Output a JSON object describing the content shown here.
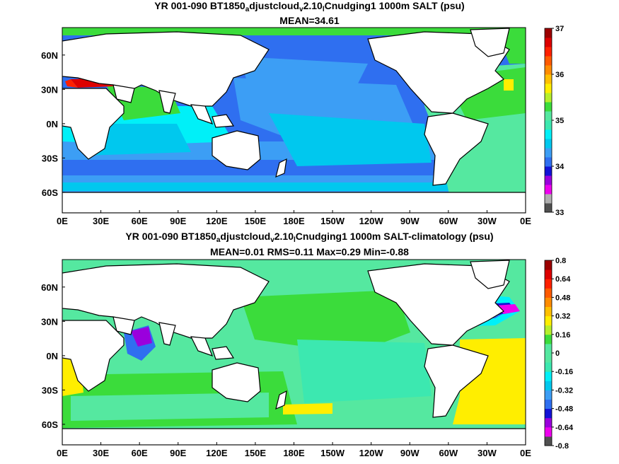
{
  "chart_data": [
    {
      "type": "heatmap",
      "title": {
        "pre": "YR 001-090 BT1850",
        "s1": "a",
        "mid1": "djustcloud",
        "s2": "v",
        "mid2": "2.10",
        "s3": "l",
        "post": "Cnudging1 1000m SALT (psu)"
      },
      "subtitle": "MEAN=34.61",
      "x_ticks": [
        "0E",
        "30E",
        "60E",
        "90E",
        "120E",
        "150E",
        "180E",
        "150W",
        "120W",
        "90W",
        "60W",
        "30W",
        "0E"
      ],
      "y_ticks": [
        "60N",
        "30N",
        "0N",
        "30S",
        "60S"
      ],
      "xlim": [
        0,
        360
      ],
      "ylim": [
        -78,
        84
      ],
      "colorbar": {
        "tick_labels": [
          "33",
          "34",
          "35",
          "36",
          "37"
        ],
        "range": [
          33,
          37
        ],
        "colors": [
          "#505050",
          "#b0b0b0",
          "#ee00ee",
          "#9a00dd",
          "#1212d6",
          "#2f6ff0",
          "#3c9ef5",
          "#00c8ee",
          "#00f0f8",
          "#3ce8b0",
          "#55e8a0",
          "#3bdc3b",
          "#b6ef2c",
          "#ffee00",
          "#ffc000",
          "#ff8c00",
          "#ff5a00",
          "#ff2000",
          "#dd0000",
          "#9c0000"
        ]
      }
    },
    {
      "type": "heatmap",
      "title": {
        "pre": "YR 001-090 BT1850",
        "s1": "a",
        "mid1": "djustcloud",
        "s2": "v",
        "mid2": "2.10",
        "s3": "l",
        "post": "Cnudging1 1000m SALT-climatology (psu)"
      },
      "subtitle": "MEAN=0.01   RMS=0.11   Max=0.29   Min=-0.88",
      "x_ticks": [
        "0E",
        "30E",
        "60E",
        "90E",
        "120E",
        "150E",
        "180E",
        "150W",
        "120W",
        "90W",
        "60W",
        "30W",
        "0E"
      ],
      "y_ticks": [
        "60N",
        "30N",
        "0N",
        "30S",
        "60S"
      ],
      "xlim": [
        0,
        360
      ],
      "ylim": [
        -78,
        84
      ],
      "colorbar": {
        "tick_labels": [
          "0.8",
          "0.64",
          "0.48",
          "0.32",
          "0.16",
          "0",
          "-0.16",
          "-0.32",
          "-0.48",
          "-0.64",
          "-0.8"
        ],
        "range": [
          -0.8,
          0.8
        ],
        "colors": [
          "#505050",
          "#ee00ee",
          "#9a00dd",
          "#1212d6",
          "#2f6ff0",
          "#3c9ef5",
          "#00c8ee",
          "#00f0f8",
          "#3ce8b0",
          "#55e8a0",
          "#55e8a0",
          "#3bdc3b",
          "#b6ef2c",
          "#ffee00",
          "#ffc000",
          "#ff8c00",
          "#ff5a00",
          "#ff2000",
          "#dd0000",
          "#9c0000"
        ]
      }
    }
  ]
}
